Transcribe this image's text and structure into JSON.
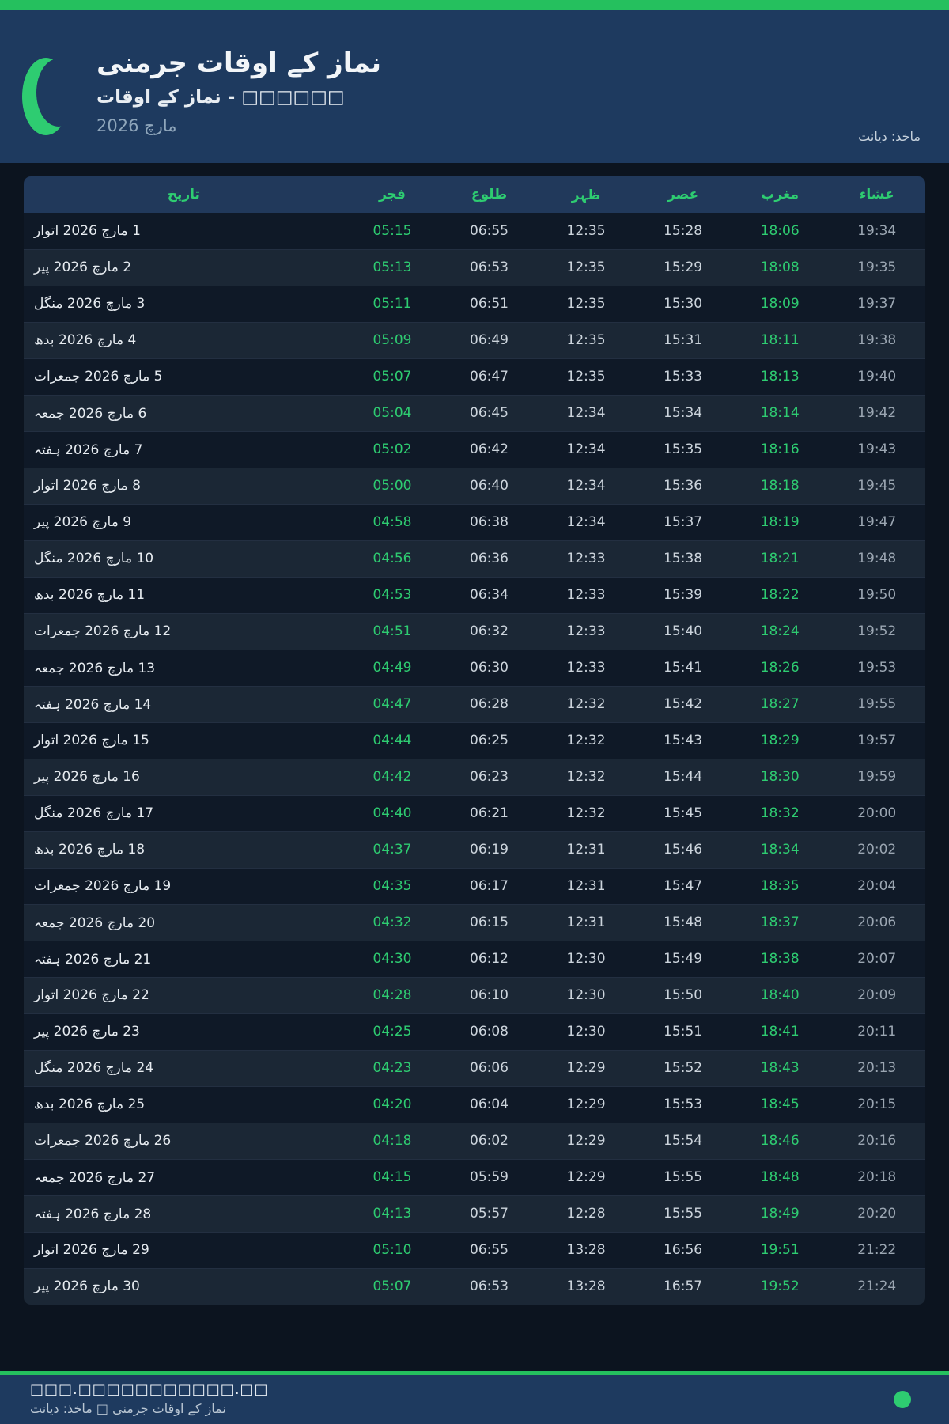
{
  "app": {
    "accent_green": "#2ecc71",
    "banner_navy": "#1e3a5f",
    "page_dark": "#0c141f"
  },
  "header": {
    "logo_icon": "crescent-moon",
    "title": "نماز کے اوقات جرمنی",
    "subtitle": "نماز کے اوقات - □□□□□□",
    "month_year": "مارچ 2026",
    "source": "ماخذ: دیانت"
  },
  "table": {
    "columns": [
      "تاریخ",
      "فجر",
      "طلوع",
      "ظہر",
      "عصر",
      "مغرب",
      "عشاء"
    ],
    "rows": [
      {
        "date": "1 مارچ 2026 اتوار",
        "times": [
          "05:15",
          "06:55",
          "12:35",
          "15:28",
          "18:06",
          "19:34"
        ]
      },
      {
        "date": "2 مارچ 2026 پیر",
        "times": [
          "05:13",
          "06:53",
          "12:35",
          "15:29",
          "18:08",
          "19:35"
        ]
      },
      {
        "date": "3 مارچ 2026 منگل",
        "times": [
          "05:11",
          "06:51",
          "12:35",
          "15:30",
          "18:09",
          "19:37"
        ]
      },
      {
        "date": "4 مارچ 2026 بدھ",
        "times": [
          "05:09",
          "06:49",
          "12:35",
          "15:31",
          "18:11",
          "19:38"
        ]
      },
      {
        "date": "5 مارچ 2026 جمعرات",
        "times": [
          "05:07",
          "06:47",
          "12:35",
          "15:33",
          "18:13",
          "19:40"
        ]
      },
      {
        "date": "6 مارچ 2026 جمعہ",
        "times": [
          "05:04",
          "06:45",
          "12:34",
          "15:34",
          "18:14",
          "19:42"
        ]
      },
      {
        "date": "7 مارچ 2026 ہفتہ",
        "times": [
          "05:02",
          "06:42",
          "12:34",
          "15:35",
          "18:16",
          "19:43"
        ]
      },
      {
        "date": "8 مارچ 2026 اتوار",
        "times": [
          "05:00",
          "06:40",
          "12:34",
          "15:36",
          "18:18",
          "19:45"
        ]
      },
      {
        "date": "9 مارچ 2026 پیر",
        "times": [
          "04:58",
          "06:38",
          "12:34",
          "15:37",
          "18:19",
          "19:47"
        ]
      },
      {
        "date": "10 مارچ 2026 منگل",
        "times": [
          "04:56",
          "06:36",
          "12:33",
          "15:38",
          "18:21",
          "19:48"
        ]
      },
      {
        "date": "11 مارچ 2026 بدھ",
        "times": [
          "04:53",
          "06:34",
          "12:33",
          "15:39",
          "18:22",
          "19:50"
        ]
      },
      {
        "date": "12 مارچ 2026 جمعرات",
        "times": [
          "04:51",
          "06:32",
          "12:33",
          "15:40",
          "18:24",
          "19:52"
        ]
      },
      {
        "date": "13 مارچ 2026 جمعہ",
        "times": [
          "04:49",
          "06:30",
          "12:33",
          "15:41",
          "18:26",
          "19:53"
        ]
      },
      {
        "date": "14 مارچ 2026 ہفتہ",
        "times": [
          "04:47",
          "06:28",
          "12:32",
          "15:42",
          "18:27",
          "19:55"
        ]
      },
      {
        "date": "15 مارچ 2026 اتوار",
        "times": [
          "04:44",
          "06:25",
          "12:32",
          "15:43",
          "18:29",
          "19:57"
        ]
      },
      {
        "date": "16 مارچ 2026 پیر",
        "times": [
          "04:42",
          "06:23",
          "12:32",
          "15:44",
          "18:30",
          "19:59"
        ]
      },
      {
        "date": "17 مارچ 2026 منگل",
        "times": [
          "04:40",
          "06:21",
          "12:32",
          "15:45",
          "18:32",
          "20:00"
        ]
      },
      {
        "date": "18 مارچ 2026 بدھ",
        "times": [
          "04:37",
          "06:19",
          "12:31",
          "15:46",
          "18:34",
          "20:02"
        ]
      },
      {
        "date": "19 مارچ 2026 جمعرات",
        "times": [
          "04:35",
          "06:17",
          "12:31",
          "15:47",
          "18:35",
          "20:04"
        ]
      },
      {
        "date": "20 مارچ 2026 جمعہ",
        "times": [
          "04:32",
          "06:15",
          "12:31",
          "15:48",
          "18:37",
          "20:06"
        ]
      },
      {
        "date": "21 مارچ 2026 ہفتہ",
        "times": [
          "04:30",
          "06:12",
          "12:30",
          "15:49",
          "18:38",
          "20:07"
        ]
      },
      {
        "date": "22 مارچ 2026 اتوار",
        "times": [
          "04:28",
          "06:10",
          "12:30",
          "15:50",
          "18:40",
          "20:09"
        ]
      },
      {
        "date": "23 مارچ 2026 پیر",
        "times": [
          "04:25",
          "06:08",
          "12:30",
          "15:51",
          "18:41",
          "20:11"
        ]
      },
      {
        "date": "24 مارچ 2026 منگل",
        "times": [
          "04:23",
          "06:06",
          "12:29",
          "15:52",
          "18:43",
          "20:13"
        ]
      },
      {
        "date": "25 مارچ 2026 بدھ",
        "times": [
          "04:20",
          "06:04",
          "12:29",
          "15:53",
          "18:45",
          "20:15"
        ]
      },
      {
        "date": "26 مارچ 2026 جمعرات",
        "times": [
          "04:18",
          "06:02",
          "12:29",
          "15:54",
          "18:46",
          "20:16"
        ]
      },
      {
        "date": "27 مارچ 2026 جمعہ",
        "times": [
          "04:15",
          "05:59",
          "12:29",
          "15:55",
          "18:48",
          "20:18"
        ]
      },
      {
        "date": "28 مارچ 2026 ہفتہ",
        "times": [
          "04:13",
          "05:57",
          "12:28",
          "15:55",
          "18:49",
          "20:20"
        ]
      },
      {
        "date": "29 مارچ 2026 اتوار",
        "times": [
          "05:10",
          "06:55",
          "13:28",
          "16:56",
          "19:51",
          "21:22"
        ]
      },
      {
        "date": "30 مارچ 2026 پیر",
        "times": [
          "05:07",
          "06:53",
          "13:28",
          "16:57",
          "19:52",
          "21:24"
        ]
      }
    ]
  },
  "footer": {
    "url": "□□□.□□□□□□□□□□□.□□",
    "caption": "نماز کے اوقات جرمنی □ ماخذ: دیانت",
    "status_dot_color": "#2ecc71"
  }
}
